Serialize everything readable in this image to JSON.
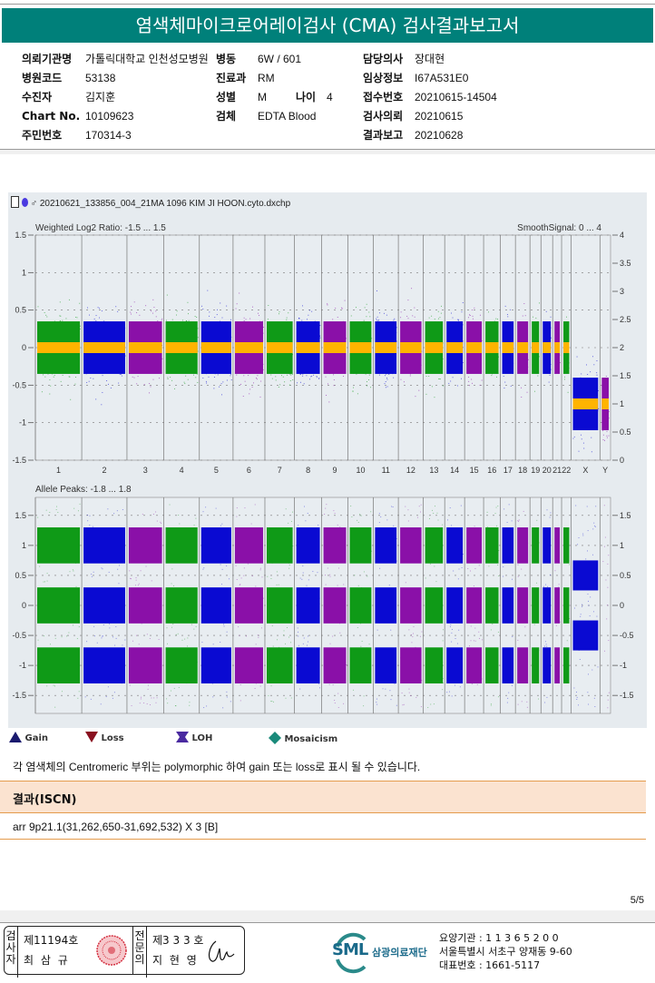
{
  "header": {
    "title": "염색체마이크로어레이검사 (CMA) 검사결과보고서"
  },
  "patient_info": {
    "col1": [
      {
        "label": "의뢰기관명",
        "value": "가톨릭대학교 인천성모병원"
      },
      {
        "label": "병원코드",
        "value": "53138"
      },
      {
        "label": "수진자",
        "value": "김지훈"
      },
      {
        "label": "Chart No.",
        "value": "10109623"
      },
      {
        "label": "주민번호",
        "value": "170314-3"
      }
    ],
    "col2": [
      {
        "label": "병동",
        "value": "6W / 601"
      },
      {
        "label": "진료과",
        "value": "RM"
      },
      {
        "label": "성별",
        "value": "M"
      },
      {
        "label": "검체",
        "value": "EDTA Blood"
      }
    ],
    "age": {
      "label": "나이",
      "value": "4"
    },
    "col3": [
      {
        "label": "담당의사",
        "value": "장대현"
      },
      {
        "label": "임상정보",
        "value": "I67A531E0"
      },
      {
        "label": "접수번호",
        "value": "20210615-14504"
      },
      {
        "label": "검사의뢰",
        "value": "20210615"
      },
      {
        "label": "결과보고",
        "value": "20210628"
      }
    ]
  },
  "chart_header": {
    "filename": "20210621_133856_004_21MA 1096 KIM JI HOON.cyto.dxchp",
    "icons": [
      "document-icon",
      "balloon-icon",
      "male-icon"
    ]
  },
  "chart_data": [
    {
      "type": "scatter",
      "title": "Weighted Log2 Ratio: -1.5 ... 1.5",
      "right_title": "SmoothSignal: 0 ... 4",
      "ylim": [
        -1.5,
        1.5
      ],
      "y2lim": [
        0,
        4
      ],
      "yticks": [
        "1.5",
        "1",
        "0.5",
        "0",
        "-0.5",
        "-1",
        "-1.5"
      ],
      "y2ticks": [
        "4",
        "3.5",
        "3",
        "2.5",
        "2",
        "1.5",
        "1",
        "0.5",
        "0"
      ],
      "grid": true,
      "chromosomes": [
        "1",
        "2",
        "3",
        "4",
        "5",
        "6",
        "7",
        "8",
        "9",
        "10",
        "11",
        "12",
        "13",
        "14",
        "15",
        "16",
        "17",
        "18",
        "19",
        "20",
        "21",
        "22",
        "X",
        "Y"
      ],
      "colors": [
        "green",
        "blue",
        "purple",
        "green",
        "blue",
        "purple",
        "green",
        "blue",
        "purple",
        "green",
        "blue",
        "purple",
        "green",
        "blue",
        "purple",
        "green",
        "blue",
        "purple",
        "green",
        "blue",
        "purple",
        "green",
        "blue",
        "purple"
      ],
      "smooth_signal_copy_number": [
        2,
        2,
        2,
        2,
        2,
        2,
        2,
        2,
        2,
        2,
        2,
        2,
        2,
        2,
        2,
        2,
        2,
        2,
        2,
        2,
        2,
        2,
        1,
        1
      ],
      "log2_band_center": [
        0,
        0,
        0,
        0,
        0,
        0,
        0,
        0,
        0,
        0,
        0,
        0,
        0,
        0,
        0,
        0,
        0,
        0,
        0,
        0,
        0,
        0,
        -0.75,
        -0.75
      ]
    },
    {
      "type": "scatter",
      "title": "Allele Peaks: -1.8 ... 1.8",
      "ylim": [
        -1.8,
        1.8
      ],
      "yticks": [
        "1.5",
        "1",
        "0.5",
        "0",
        "-0.5",
        "-1",
        "-1.5"
      ],
      "grid": true,
      "allele_peak_levels": [
        1,
        0,
        -1
      ],
      "x_chromosome_levels": [
        0.5,
        -0.5
      ]
    }
  ],
  "chromosome_widths": [
    249,
    243,
    198,
    191,
    181,
    171,
    159,
    146,
    141,
    136,
    135,
    134,
    115,
    107,
    102,
    90,
    81,
    78,
    59,
    63,
    48,
    51,
    155,
    57
  ],
  "palette": {
    "green": "#0f9a17",
    "blue": "#0a0ad2",
    "purple": "#8a10a8",
    "yellow": "#ffb400",
    "teal": "#00807a"
  },
  "legend": [
    {
      "label": "Gain",
      "icon": "triangle-up-icon",
      "color": "#1a1a6e"
    },
    {
      "label": "Loss",
      "icon": "triangle-down-icon",
      "color": "#8a1020"
    },
    {
      "label": "LOH",
      "icon": "loh-icon",
      "color": "#4a2aa0"
    },
    {
      "label": "Mosaicism",
      "icon": "diamond-icon",
      "color": "#1a8a7a"
    }
  ],
  "note": "각 염색체의 Centromeric 부위는 polymorphic 하여 gain 또는 loss로 표시 될 수 있습니다.",
  "result": {
    "heading": "결과(ISCN)",
    "value": "arr 9p21.1(31,262,650-31,692,532) X 3 [B]"
  },
  "page_number": "5/5",
  "footer": {
    "examiner_label": "검사자",
    "examiner_no": "제11194호",
    "examiner_name": "최 삼 규",
    "specialist_label": "전문의",
    "specialist_no": "제3 3 3 호",
    "specialist_name": "지 현 영",
    "org_logo": "SML",
    "org_name": "삼광의료재단",
    "org_lines": [
      "요양기관 : 1 1 3 6 5 2 0 0",
      "서울특별시 서초구 양재동 9-60",
      "대표번호 : 1661-5117"
    ]
  }
}
